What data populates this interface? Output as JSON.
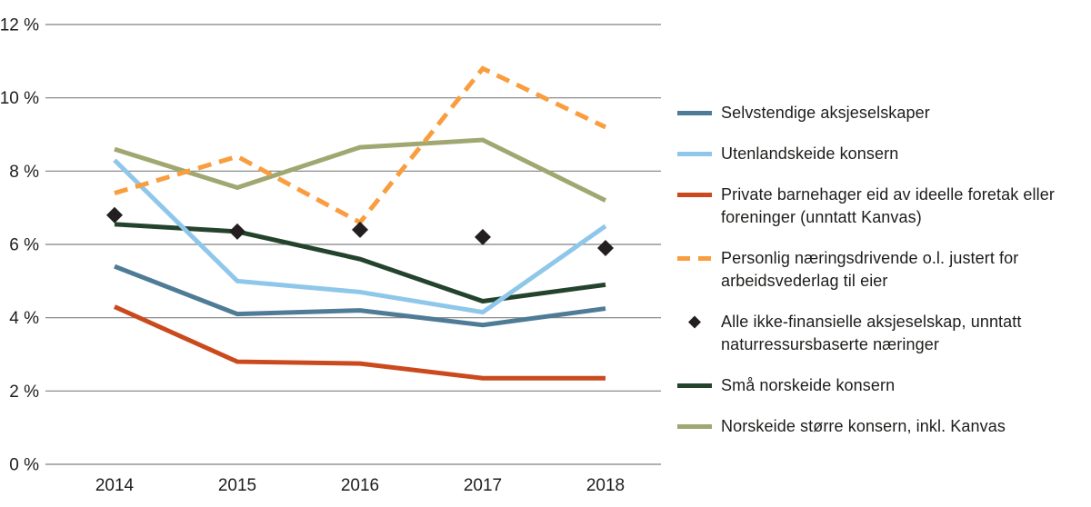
{
  "chart_data": {
    "type": "line",
    "title": "",
    "xlabel": "",
    "ylabel": "",
    "x": [
      "2014",
      "2015",
      "2016",
      "2017",
      "2018"
    ],
    "ylim": [
      0,
      12
    ],
    "yticks": [
      0,
      2,
      4,
      6,
      8,
      10,
      12
    ],
    "ytick_labels": [
      "0 %",
      "2 %",
      "4 %",
      "6 %",
      "8 %",
      "10 %",
      "12 %"
    ],
    "grid": true,
    "legend_position": "right",
    "axis_text_color": "#1d1d1b",
    "grid_color": "#808080",
    "series": [
      {
        "name": "Selvstendige aksjeselskaper",
        "style": "solid",
        "color": "#4e7b96",
        "values": [
          5.4,
          4.1,
          4.2,
          3.8,
          4.25
        ]
      },
      {
        "name": "Utenlandskeide konsern",
        "style": "solid",
        "color": "#8fc7ea",
        "values": [
          8.3,
          5.0,
          4.7,
          4.15,
          6.5
        ]
      },
      {
        "name": "Private barnehager eid av ideelle foretak eller foreninger  (unntatt Kanvas)",
        "style": "solid",
        "color": "#ca4a1e",
        "values": [
          4.3,
          2.8,
          2.75,
          2.35,
          2.35
        ]
      },
      {
        "name": "Personlig næringsdrivende o.l. justert for arbeidsvederlag til eier",
        "style": "dashed",
        "color": "#f99d3e",
        "values": [
          7.4,
          8.4,
          6.6,
          10.8,
          9.2
        ]
      },
      {
        "name": "Alle ikke-finansielle aksjeselskap, unntatt naturressursbaserte næringer",
        "style": "diamond",
        "color": "#231f20",
        "values": [
          6.8,
          6.35,
          6.4,
          6.2,
          5.9
        ]
      },
      {
        "name": "Små norskeide konsern",
        "style": "solid",
        "color": "#24432c",
        "values": [
          6.55,
          6.35,
          5.6,
          4.45,
          4.9
        ]
      },
      {
        "name": "Norskeide større konsern, inkl. Kanvas",
        "style": "solid",
        "color": "#a1a771",
        "values": [
          8.6,
          7.55,
          8.65,
          8.85,
          7.2
        ]
      }
    ]
  }
}
